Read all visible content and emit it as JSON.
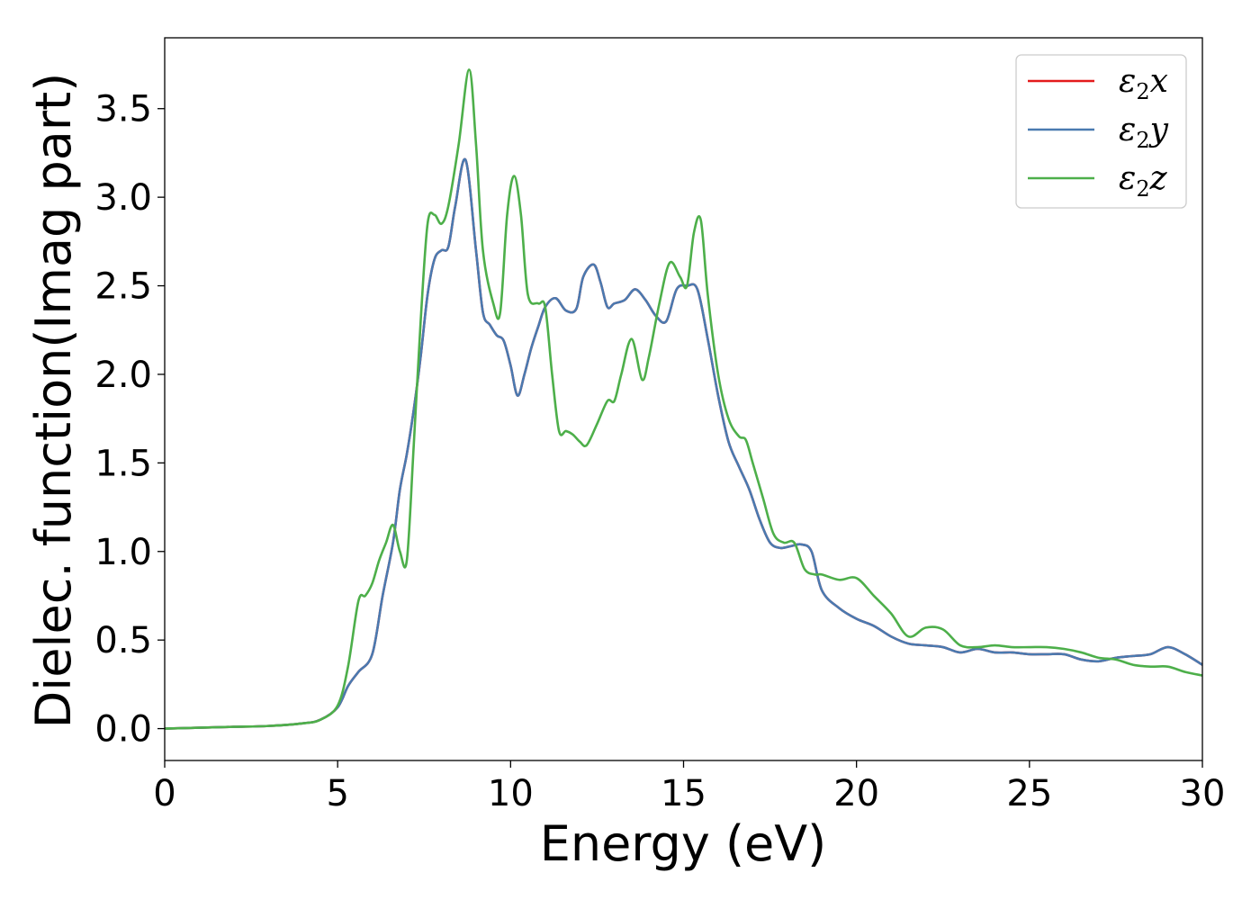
{
  "chart_data": {
    "type": "line",
    "xlabel": "Energy (eV)",
    "ylabel": "Dielec. function(Imag part)",
    "xlim": [
      0,
      30
    ],
    "ylim": [
      -0.18,
      3.9
    ],
    "xticks": [
      0,
      5,
      10,
      15,
      20,
      25,
      30
    ],
    "xtick_labels": [
      "0",
      "5",
      "10",
      "15",
      "20",
      "25",
      "30"
    ],
    "yticks": [
      0.0,
      0.5,
      1.0,
      1.5,
      2.0,
      2.5,
      3.0,
      3.5
    ],
    "ytick_labels": [
      "0.0",
      "0.5",
      "1.0",
      "1.5",
      "2.0",
      "2.5",
      "3.0",
      "3.5"
    ],
    "grid": false,
    "legend_position": "top-right",
    "series": [
      {
        "name": "ε₂x",
        "legend_base": "ε",
        "legend_sub": "2",
        "legend_suffix": "x",
        "color": "#e41a1c",
        "x": [
          0,
          1,
          2,
          3,
          4,
          4.5,
          5,
          5.3,
          5.6,
          6,
          6.3,
          6.6,
          6.8,
          7,
          7.2,
          7.4,
          7.6,
          7.8,
          8,
          8.2,
          8.4,
          8.7,
          9,
          9.2,
          9.4,
          9.6,
          9.8,
          10,
          10.2,
          10.4,
          10.6,
          10.8,
          11,
          11.3,
          11.6,
          11.9,
          12.1,
          12.4,
          12.6,
          12.8,
          13,
          13.3,
          13.6,
          13.9,
          14.2,
          14.5,
          14.8,
          15.1,
          15.4,
          15.7,
          16,
          16.3,
          16.6,
          16.9,
          17.2,
          17.5,
          17.8,
          18.1,
          18.4,
          18.7,
          19,
          19.5,
          20,
          20.5,
          21,
          21.5,
          22,
          22.5,
          23,
          23.5,
          24,
          24.5,
          25,
          25.5,
          26,
          26.5,
          27,
          27.5,
          28,
          28.5,
          29,
          29.5,
          30
        ],
        "y": [
          0,
          0.005,
          0.01,
          0.015,
          0.03,
          0.05,
          0.12,
          0.24,
          0.32,
          0.42,
          0.75,
          1.05,
          1.35,
          1.55,
          1.8,
          2.1,
          2.45,
          2.65,
          2.7,
          2.72,
          2.95,
          3.21,
          2.7,
          2.35,
          2.28,
          2.22,
          2.19,
          2.05,
          1.88,
          2.0,
          2.15,
          2.27,
          2.38,
          2.43,
          2.36,
          2.37,
          2.55,
          2.62,
          2.52,
          2.38,
          2.4,
          2.42,
          2.48,
          2.42,
          2.33,
          2.3,
          2.48,
          2.5,
          2.48,
          2.2,
          1.88,
          1.62,
          1.48,
          1.35,
          1.18,
          1.05,
          1.02,
          1.03,
          1.04,
          1.0,
          0.78,
          0.68,
          0.62,
          0.58,
          0.52,
          0.48,
          0.47,
          0.46,
          0.43,
          0.45,
          0.43,
          0.43,
          0.42,
          0.42,
          0.42,
          0.39,
          0.38,
          0.4,
          0.41,
          0.42,
          0.46,
          0.42,
          0.36
        ]
      },
      {
        "name": "ε₂y",
        "legend_base": "ε",
        "legend_sub": "2",
        "legend_suffix": "y",
        "color": "#4a7ab0",
        "x": [
          0,
          1,
          2,
          3,
          4,
          4.5,
          5,
          5.3,
          5.6,
          6,
          6.3,
          6.6,
          6.8,
          7,
          7.2,
          7.4,
          7.6,
          7.8,
          8,
          8.2,
          8.4,
          8.7,
          9,
          9.2,
          9.4,
          9.6,
          9.8,
          10,
          10.2,
          10.4,
          10.6,
          10.8,
          11,
          11.3,
          11.6,
          11.9,
          12.1,
          12.4,
          12.6,
          12.8,
          13,
          13.3,
          13.6,
          13.9,
          14.2,
          14.5,
          14.8,
          15.1,
          15.4,
          15.7,
          16,
          16.3,
          16.6,
          16.9,
          17.2,
          17.5,
          17.8,
          18.1,
          18.4,
          18.7,
          19,
          19.5,
          20,
          20.5,
          21,
          21.5,
          22,
          22.5,
          23,
          23.5,
          24,
          24.5,
          25,
          25.5,
          26,
          26.5,
          27,
          27.5,
          28,
          28.5,
          29,
          29.5,
          30
        ],
        "y": [
          0,
          0.005,
          0.01,
          0.015,
          0.03,
          0.05,
          0.12,
          0.24,
          0.32,
          0.42,
          0.75,
          1.05,
          1.35,
          1.55,
          1.8,
          2.1,
          2.45,
          2.65,
          2.7,
          2.72,
          2.95,
          3.21,
          2.7,
          2.35,
          2.28,
          2.22,
          2.19,
          2.05,
          1.88,
          2.0,
          2.15,
          2.27,
          2.38,
          2.43,
          2.36,
          2.37,
          2.55,
          2.62,
          2.52,
          2.38,
          2.4,
          2.42,
          2.48,
          2.42,
          2.33,
          2.3,
          2.48,
          2.5,
          2.48,
          2.2,
          1.88,
          1.62,
          1.48,
          1.35,
          1.18,
          1.05,
          1.02,
          1.03,
          1.04,
          1.0,
          0.78,
          0.68,
          0.62,
          0.58,
          0.52,
          0.48,
          0.47,
          0.46,
          0.43,
          0.45,
          0.43,
          0.43,
          0.42,
          0.42,
          0.42,
          0.39,
          0.38,
          0.4,
          0.41,
          0.42,
          0.46,
          0.42,
          0.36
        ]
      },
      {
        "name": "ε₂z",
        "legend_base": "ε",
        "legend_sub": "2",
        "legend_suffix": "z",
        "color": "#4daf4a",
        "x": [
          0,
          1,
          2,
          3,
          4,
          4.5,
          5,
          5.3,
          5.6,
          5.8,
          6,
          6.2,
          6.4,
          6.6,
          6.8,
          7,
          7.2,
          7.4,
          7.6,
          7.8,
          8,
          8.2,
          8.5,
          8.8,
          9,
          9.2,
          9.5,
          9.7,
          9.9,
          10.1,
          10.3,
          10.5,
          10.8,
          11,
          11.2,
          11.4,
          11.6,
          11.8,
          12,
          12.2,
          12.5,
          12.8,
          13,
          13.2,
          13.5,
          13.8,
          14,
          14.3,
          14.6,
          14.9,
          15.1,
          15.3,
          15.5,
          15.7,
          16,
          16.3,
          16.6,
          16.8,
          17,
          17.3,
          17.6,
          17.9,
          18.2,
          18.5,
          18.8,
          19,
          19.5,
          20,
          20.5,
          21,
          21.5,
          22,
          22.5,
          23,
          23.5,
          24,
          24.5,
          25,
          25.5,
          26,
          26.5,
          27,
          27.5,
          28,
          28.5,
          29,
          29.5,
          30
        ],
        "y": [
          0,
          0.005,
          0.01,
          0.015,
          0.03,
          0.05,
          0.13,
          0.35,
          0.72,
          0.75,
          0.82,
          0.95,
          1.05,
          1.15,
          1.0,
          0.95,
          1.6,
          2.3,
          2.85,
          2.9,
          2.85,
          2.95,
          3.3,
          3.72,
          3.3,
          2.7,
          2.4,
          2.35,
          2.9,
          3.12,
          2.9,
          2.45,
          2.4,
          2.38,
          2.0,
          1.68,
          1.68,
          1.66,
          1.62,
          1.6,
          1.72,
          1.85,
          1.85,
          2.0,
          2.2,
          1.97,
          2.1,
          2.4,
          2.63,
          2.55,
          2.5,
          2.8,
          2.87,
          2.45,
          2.0,
          1.75,
          1.65,
          1.63,
          1.5,
          1.3,
          1.1,
          1.05,
          1.05,
          0.9,
          0.87,
          0.87,
          0.84,
          0.85,
          0.75,
          0.65,
          0.52,
          0.57,
          0.56,
          0.47,
          0.46,
          0.47,
          0.46,
          0.46,
          0.46,
          0.45,
          0.43,
          0.4,
          0.39,
          0.36,
          0.35,
          0.35,
          0.32,
          0.3
        ]
      }
    ]
  }
}
